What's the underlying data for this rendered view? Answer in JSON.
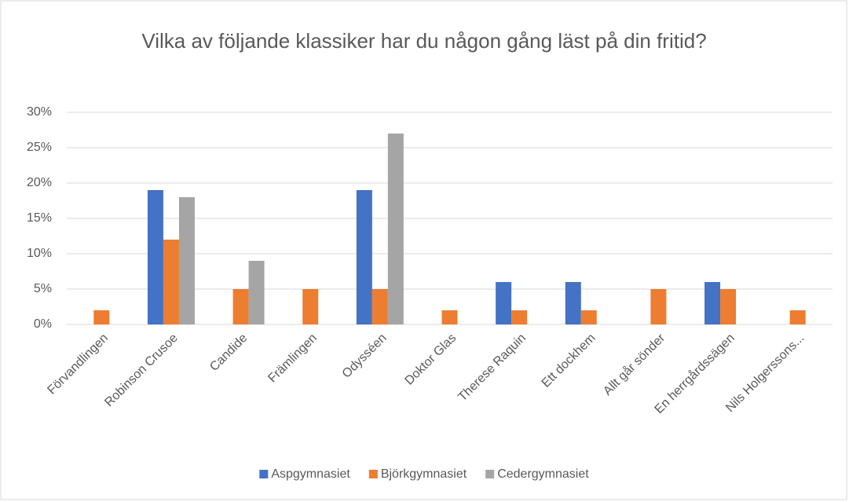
{
  "chart_data": {
    "type": "bar",
    "title": "Vilka av följande klassiker har du någon gång läst på din fritid?",
    "categories": [
      "Förvandlingen",
      "Robinson Crusoe",
      "Candide",
      "Främlingen",
      "Odysséen",
      "Doktor Glas",
      "Therese Raquin",
      "Ett dockhem",
      "Allt går sönder",
      "En herrgårdssägen",
      "Nils Holgerssons..."
    ],
    "series": [
      {
        "name": "Aspgymnasiet",
        "color": "#4472c4",
        "values": [
          0,
          19,
          0,
          0,
          19,
          0,
          6,
          6,
          0,
          6,
          0
        ]
      },
      {
        "name": "Björkgymnasiet",
        "color": "#ed7d31",
        "values": [
          2,
          12,
          5,
          5,
          5,
          2,
          2,
          2,
          5,
          5,
          2
        ]
      },
      {
        "name": "Cedergymnasiet",
        "color": "#a5a5a5",
        "values": [
          0,
          18,
          9,
          0,
          27,
          0,
          0,
          0,
          0,
          0,
          0
        ]
      }
    ],
    "ylim": [
      0,
      30
    ],
    "yticks": [
      {
        "value": 0,
        "label": "0%"
      },
      {
        "value": 5,
        "label": "5%"
      },
      {
        "value": 10,
        "label": "10%"
      },
      {
        "value": 15,
        "label": "15%"
      },
      {
        "value": 20,
        "label": "20%"
      },
      {
        "value": 25,
        "label": "25%"
      },
      {
        "value": 30,
        "label": "30%"
      }
    ],
    "grid": true,
    "legend": "bottom"
  }
}
